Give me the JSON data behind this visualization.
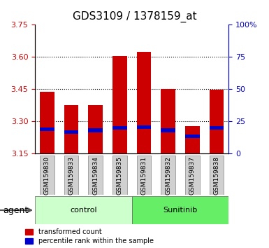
{
  "title": "GDS3109 / 1378159_at",
  "samples": [
    "GSM159830",
    "GSM159833",
    "GSM159834",
    "GSM159835",
    "GSM159831",
    "GSM159832",
    "GSM159837",
    "GSM159838"
  ],
  "red_tops": [
    3.44,
    3.375,
    3.375,
    3.605,
    3.625,
    3.45,
    3.28,
    3.448
  ],
  "blue_tops": [
    3.255,
    3.242,
    3.25,
    3.262,
    3.265,
    3.25,
    3.222,
    3.262
  ],
  "blue_heights": [
    0.018,
    0.018,
    0.018,
    0.018,
    0.018,
    0.018,
    0.018,
    0.018
  ],
  "bar_bottom": 3.15,
  "ylim_left": [
    3.15,
    3.75
  ],
  "ylim_right": [
    0,
    100
  ],
  "yticks_left": [
    3.15,
    3.3,
    3.45,
    3.6,
    3.75
  ],
  "yticks_right": [
    0,
    25,
    50,
    75,
    100
  ],
  "yticklabels_right": [
    "0",
    "25",
    "50",
    "75",
    "100%"
  ],
  "grid_values": [
    3.3,
    3.45,
    3.6
  ],
  "groups": [
    {
      "label": "control",
      "indices": [
        0,
        1,
        2,
        3
      ],
      "color": "#ccffcc"
    },
    {
      "label": "Sunitinib",
      "indices": [
        4,
        5,
        6,
        7
      ],
      "color": "#66ee66"
    }
  ],
  "agent_label": "agent",
  "red_color": "#cc0000",
  "blue_color": "#0000cc",
  "bar_width": 0.6,
  "background_color": "#ffffff"
}
